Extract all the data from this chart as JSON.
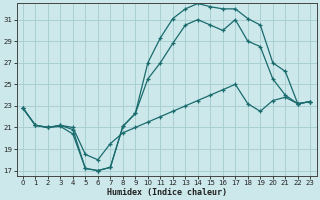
{
  "xlabel": "Humidex (Indice chaleur)",
  "bg_color": "#cce8ea",
  "grid_color": "#aad0d4",
  "line_color": "#1a6b6e",
  "xlim": [
    -0.5,
    23.5
  ],
  "ylim": [
    16.5,
    32.5
  ],
  "xticks": [
    0,
    1,
    2,
    3,
    4,
    5,
    6,
    7,
    8,
    9,
    10,
    11,
    12,
    13,
    14,
    15,
    16,
    17,
    18,
    19,
    20,
    21,
    22,
    23
  ],
  "yticks": [
    17,
    19,
    21,
    23,
    25,
    27,
    29,
    31
  ],
  "line1_x": [
    0,
    1,
    2,
    3,
    4,
    5,
    6,
    7,
    8,
    9,
    10,
    11,
    12,
    13,
    14,
    15,
    16,
    17,
    18,
    19,
    20,
    21,
    22,
    23
  ],
  "line1_y": [
    22.8,
    21.2,
    21.0,
    21.1,
    20.4,
    17.2,
    17.0,
    17.3,
    21.1,
    22.3,
    27.0,
    29.3,
    31.1,
    32.0,
    32.5,
    32.2,
    32.0,
    32.0,
    31.1,
    30.5,
    27.0,
    26.2,
    23.2,
    23.4
  ],
  "line2_x": [
    0,
    1,
    2,
    3,
    4,
    5,
    6,
    7,
    8,
    9,
    10,
    11,
    12,
    13,
    14,
    15,
    16,
    17,
    18,
    19,
    20,
    21,
    22,
    23
  ],
  "line2_y": [
    22.8,
    21.2,
    21.0,
    21.2,
    20.8,
    17.2,
    17.0,
    17.3,
    21.1,
    22.3,
    25.5,
    27.0,
    28.8,
    30.5,
    31.0,
    30.5,
    30.0,
    31.0,
    29.0,
    28.5,
    25.5,
    24.0,
    23.2,
    23.4
  ],
  "line3_x": [
    0,
    1,
    2,
    3,
    4,
    5,
    6,
    7,
    8,
    9,
    10,
    11,
    12,
    13,
    14,
    15,
    16,
    17,
    18,
    19,
    20,
    21,
    22,
    23
  ],
  "line3_y": [
    22.8,
    21.2,
    21.0,
    21.2,
    21.0,
    18.5,
    18.0,
    19.5,
    20.5,
    21.0,
    21.5,
    22.0,
    22.5,
    23.0,
    23.5,
    24.0,
    24.5,
    25.0,
    23.2,
    22.5,
    23.5,
    23.8,
    23.2,
    23.4
  ]
}
